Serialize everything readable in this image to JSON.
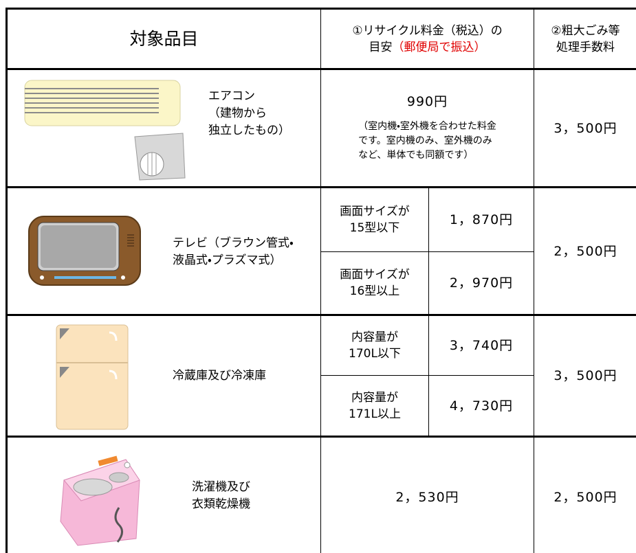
{
  "header": {
    "item": "対象品目",
    "fee": [
      "①リサイクル料金（税込）の",
      "目安",
      "（郵便局で振込）"
    ],
    "handling": [
      "②粗大ごみ等",
      "処理手数料"
    ]
  },
  "rows": [
    {
      "name": [
        "エアコン",
        "（建物から",
        "独立したもの）"
      ],
      "fee": "990円",
      "note": [
        "（室内機・室外機を合わせた料金",
        "です。室内機のみ、室外機のみ",
        "など、単体でも同額です）"
      ],
      "handling": "3，500円"
    },
    {
      "name": [
        "テレビ（ブラウン管式・",
        "液晶式・プラズマ式）"
      ],
      "sub": [
        {
          "condition": [
            "画面サイズが",
            "15型以下"
          ],
          "fee": "1，870円"
        },
        {
          "condition": [
            "画面サイズが",
            "16型以上"
          ],
          "fee": "2，970円"
        }
      ],
      "handling": "2，500円"
    },
    {
      "name": [
        "冷蔵庫及び冷凍庫"
      ],
      "sub": [
        {
          "condition": [
            "内容量が",
            "170L以下"
          ],
          "fee": "3，740円"
        },
        {
          "condition": [
            "内容量が",
            "171L以上"
          ],
          "fee": "4，730円"
        }
      ],
      "handling": "3，500円"
    },
    {
      "name": [
        "洗濯機及び",
        "衣類乾燥機"
      ],
      "fee": "2，530円",
      "handling": "2，500円"
    }
  ]
}
